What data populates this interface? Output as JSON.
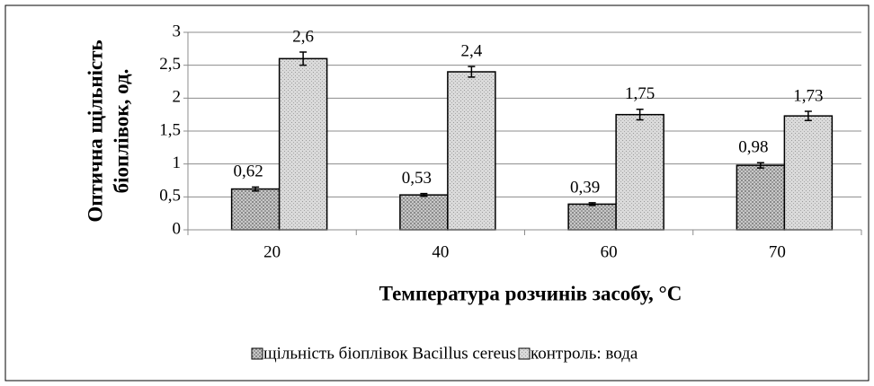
{
  "chart_data": {
    "type": "bar",
    "y_label": [
      "Оптична щільність",
      "біоплівок, од."
    ],
    "x_label": "Температура розчинів засобу, °C",
    "categories": [
      "20",
      "40",
      "60",
      "70"
    ],
    "series": [
      {
        "name": "щільність біоплівок Bacillus cereus",
        "color": "#a8a8a8",
        "values": [
          0.62,
          0.53,
          0.39,
          0.98
        ],
        "value_labels": [
          "0,62",
          "0,53",
          "0,39",
          "0,98"
        ],
        "errors": [
          0.03,
          0.02,
          0.02,
          0.04
        ]
      },
      {
        "name": "контроль: вода",
        "color": "#cfcfcf",
        "values": [
          2.6,
          2.4,
          1.75,
          1.73
        ],
        "value_labels": [
          "2,6",
          "2,4",
          "1,75",
          "1,73"
        ],
        "errors": [
          0.1,
          0.08,
          0.08,
          0.07
        ]
      }
    ],
    "ylim": [
      0,
      3
    ],
    "yticks": [
      0,
      {
        "value": 0.5,
        "label": "0,5"
      },
      1,
      {
        "value": 1.5,
        "label": "1,5"
      },
      2,
      {
        "value": 2.5,
        "label": "2,5"
      },
      3
    ],
    "grid": true,
    "legend": "bottom"
  }
}
